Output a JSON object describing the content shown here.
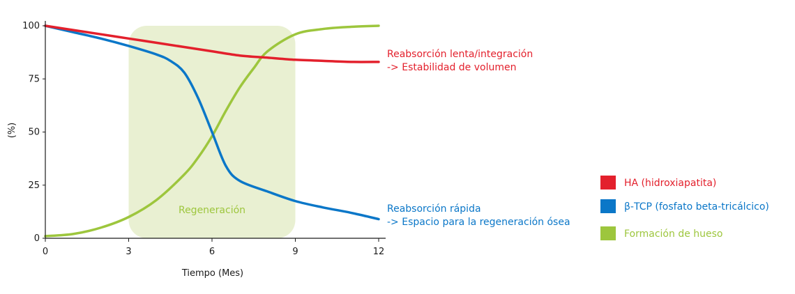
{
  "chart_data": {
    "type": "line",
    "xlabel": "Tiempo (Mes)",
    "ylabel": "(%)",
    "xlim": [
      0,
      12
    ],
    "ylim": [
      0,
      100
    ],
    "x_ticks": [
      "0",
      "3",
      "6",
      "9",
      "12"
    ],
    "y_ticks": [
      "0",
      "25",
      "50",
      "75",
      "100"
    ],
    "grid": false,
    "legend_position": "right",
    "shaded_region": {
      "label": "Regeneración",
      "x": [
        3,
        9
      ],
      "y": [
        0,
        100
      ],
      "color": "#e9f0d2",
      "text_color": "#9dc63d"
    },
    "series": [
      {
        "name": "HA (hidroxiapatita)",
        "color": "#e3202c",
        "x": [
          0,
          1,
          2,
          3,
          4,
          5,
          6,
          7,
          8,
          9,
          10,
          11,
          12
        ],
        "y": [
          100,
          98,
          96,
          94,
          92,
          90,
          88,
          86,
          85,
          84,
          83.5,
          83,
          83
        ]
      },
      {
        "name": "β-TCP (fosfato beta-tricálcico)",
        "color": "#0b77c8",
        "x": [
          0,
          1,
          2,
          3,
          4,
          4.5,
          5,
          5.5,
          6,
          6.5,
          7,
          8,
          9,
          10,
          11,
          12
        ],
        "y": [
          100,
          97,
          94,
          90.5,
          86.5,
          83.5,
          78,
          66,
          50,
          34,
          27,
          22,
          17.5,
          14.5,
          12,
          9
        ]
      },
      {
        "name": "Formación de hueso",
        "color": "#9dc63d",
        "x": [
          0,
          1,
          2,
          3,
          4,
          5,
          5.5,
          6,
          6.5,
          7,
          7.5,
          8,
          9,
          10,
          11,
          12
        ],
        "y": [
          1,
          2,
          5,
          10,
          18,
          30,
          38,
          48,
          60,
          71,
          80,
          88,
          96,
          98.5,
          99.5,
          100
        ]
      }
    ],
    "annotations": [
      {
        "lines": [
          "Reabsorción lenta/integración",
          "-> Estabilidad de volumen"
        ],
        "color": "#e3202c"
      },
      {
        "lines": [
          "Reabsorción rápida",
          "-> Espacio para la regeneración ósea"
        ],
        "color": "#0b77c8"
      }
    ]
  }
}
